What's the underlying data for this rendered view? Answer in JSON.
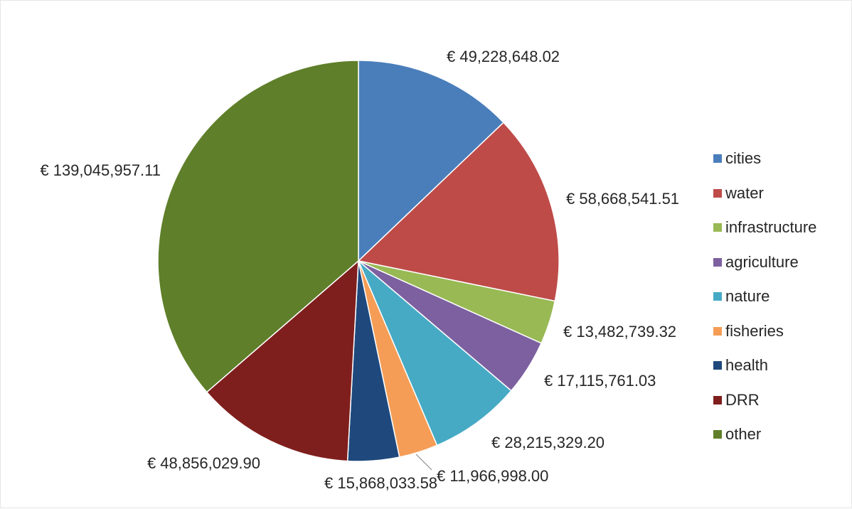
{
  "chart_data": {
    "type": "pie",
    "currency_prefix": "€",
    "start_angle_deg": 0,
    "direction": "clockwise",
    "legend_position": "right",
    "slices": [
      {
        "name": "cities",
        "value": 49228648.02,
        "label": "€ 49,228,648.02",
        "color": "#4a7ebb"
      },
      {
        "name": "water",
        "value": 58668541.51,
        "label": "€ 58,668,541.51",
        "color": "#be4b48"
      },
      {
        "name": "infrastructure",
        "value": 13482739.32,
        "label": "€ 13,482,739.32",
        "color": "#98b954"
      },
      {
        "name": "agriculture",
        "value": 17115761.03,
        "label": "€ 17,115,761.03",
        "color": "#7d60a0"
      },
      {
        "name": "nature",
        "value": 28215329.2,
        "label": "€ 28,215,329.20",
        "color": "#46aac5"
      },
      {
        "name": "fisheries",
        "value": 11966998.0,
        "label": "€ 11,966,998.00",
        "color": "#f59d56"
      },
      {
        "name": "health",
        "value": 15868033.58,
        "label": "€ 15,868,033.58",
        "color": "#1f497d"
      },
      {
        "name": "DRR",
        "value": 48856029.9,
        "label": "€ 48,856,029.90",
        "color": "#7f1f1d"
      },
      {
        "name": "other",
        "value": 139045957.11,
        "label": "€ 139,045,957.11",
        "color": "#5f7f2a"
      }
    ]
  }
}
